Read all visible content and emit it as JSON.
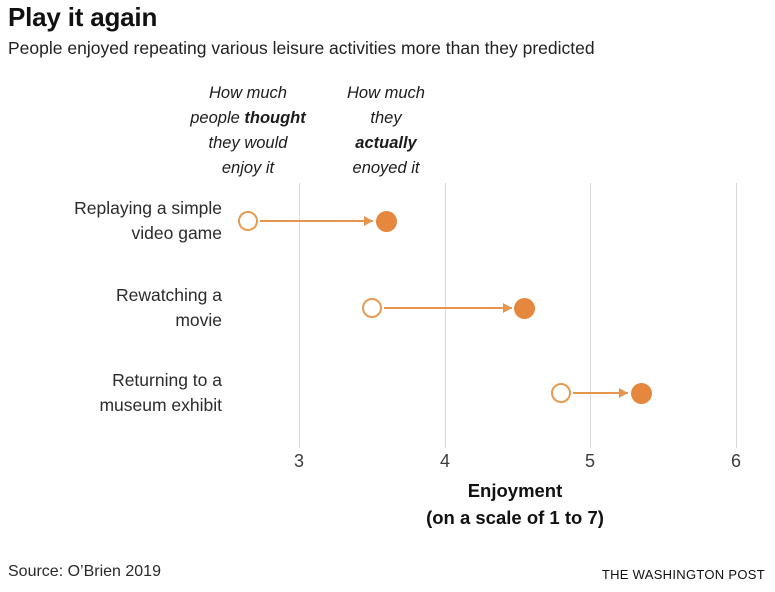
{
  "header": {
    "title": "Play it again",
    "subtitle": "People enjoyed repeating various leisure activities more than they predicted"
  },
  "chart_data": {
    "type": "scatter",
    "subtype": "dumbbell-arrow",
    "orientation": "horizontal",
    "categories": [
      "Replaying a simple video game",
      "Rewatching a movie",
      "Returning to a museum exhibit"
    ],
    "category_label_lines": [
      [
        "Replaying a simple",
        "video game"
      ],
      [
        "Rewatching a",
        "movie"
      ],
      [
        "Returning to a",
        "museum exhibit"
      ]
    ],
    "series": [
      {
        "name": "predicted",
        "header_lines": [
          "How much",
          "people **thought**",
          "they would",
          "enjoy it"
        ],
        "marker": "open-circle",
        "values": [
          2.65,
          3.5,
          4.8
        ]
      },
      {
        "name": "actual",
        "header_lines": [
          "How much",
          "they",
          "**actually**",
          "enoyed it"
        ],
        "marker": "filled-circle",
        "values": [
          3.6,
          4.55,
          5.35
        ]
      }
    ],
    "xlabel": "Enjoyment",
    "xlabel_sub": "(on a scale of 1 to 7)",
    "x_ticks": [
      3,
      4,
      5,
      6
    ],
    "xlim": [
      2.3,
      6.3
    ],
    "grid": "vertical",
    "legend_position": "column-headers-above-first-row",
    "accent_color": "#e5873c",
    "open_marker_stroke": "#e79a52",
    "arrow_color": "#e6954e",
    "gridline_color": "#d9d9d9"
  },
  "footer": {
    "source": "Source: O’Brien 2019",
    "credit": "THE WASHINGTON POST"
  }
}
